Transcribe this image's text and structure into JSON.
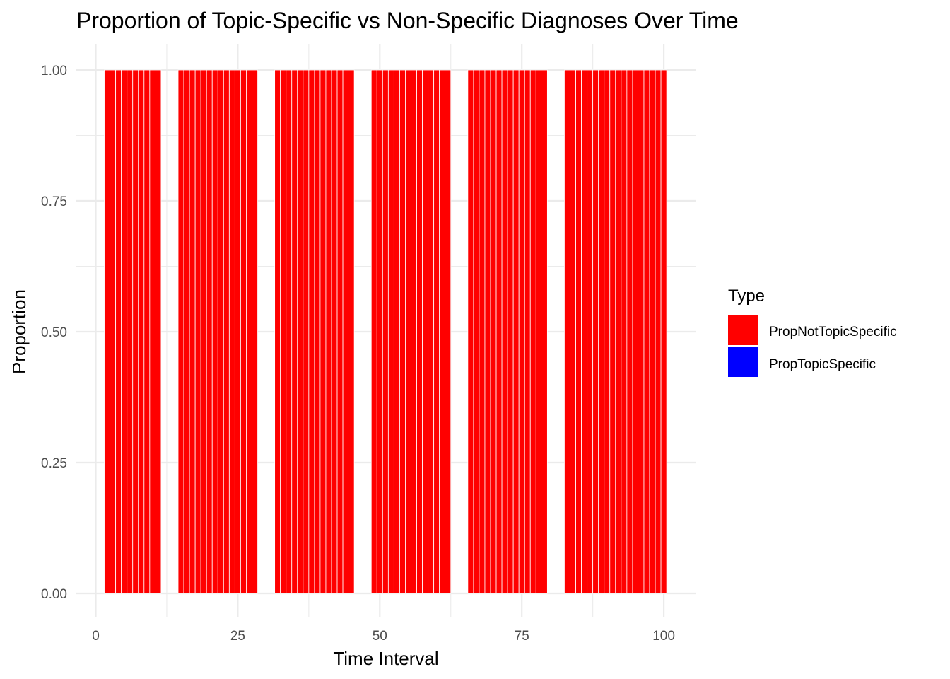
{
  "chart_data": {
    "type": "bar",
    "stacked": true,
    "title": "Proportion of Topic-Specific vs Non-Specific Diagnoses Over Time",
    "xlabel": "Time Interval",
    "ylabel": "Proportion",
    "xlim": [
      0,
      100
    ],
    "ylim": [
      0,
      1
    ],
    "x_ticks": [
      "0",
      "25",
      "50",
      "75",
      "100"
    ],
    "y_ticks": [
      "0.00",
      "0.25",
      "0.50",
      "0.75",
      "1.00"
    ],
    "grid": true,
    "legend": {
      "title": "Type",
      "position": "right",
      "entries": [
        {
          "label": "PropNotTopicSpecific",
          "color": "#ff0000"
        },
        {
          "label": "PropTopicSpecific",
          "color": "#0000ff"
        }
      ]
    },
    "x_first": 2,
    "x_last": 100,
    "missing_x": [
      11,
      12,
      13,
      14,
      28,
      29,
      30,
      31,
      45,
      46,
      47,
      48,
      62,
      63,
      64,
      65,
      79,
      80,
      81,
      82,
      96
    ],
    "series": [
      {
        "name": "PropNotTopicSpecific",
        "color": "#ff0000",
        "value_each_interval": 1.0
      },
      {
        "name": "PropTopicSpecific",
        "color": "#0000ff",
        "value_each_interval": 0.0
      }
    ]
  }
}
